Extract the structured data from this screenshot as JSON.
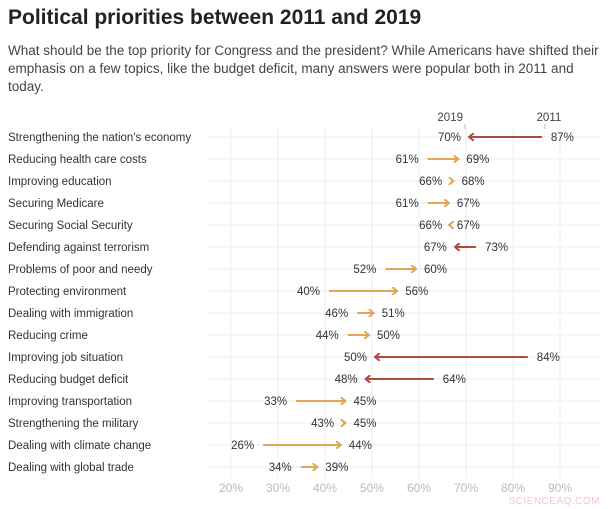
{
  "title": "Political priorities between 2011 and 2019",
  "subtitle": "What should be the top priority for Congress and the president? While Americans have shifted their emphasis on a few topics, like the budget deficit, many answers were popular both in 2011 and today.",
  "watermark": "SCIENCEAQ.COM",
  "chart_data": {
    "type": "arrow",
    "series_labels": {
      "from": "2011",
      "to": "2019"
    },
    "colors": {
      "increase": "#e3a653",
      "decrease": "#b04a3e",
      "grid": "#ececec",
      "tick": "#bbbbbb"
    },
    "xlim": [
      15,
      98
    ],
    "xticks": [
      20,
      30,
      40,
      50,
      60,
      70,
      80,
      90
    ],
    "xtick_labels": [
      "20%",
      "30%",
      "40%",
      "50%",
      "60%",
      "70%",
      "80%",
      "90%"
    ],
    "grid": true,
    "categories": [
      "Strengthening the nation's economy",
      "Reducing health care costs",
      "Improving education",
      "Securing Medicare",
      "Securing Social Security",
      "Defending against terrorism",
      "Problems of poor and needy",
      "Protecting environment",
      "Dealing with immigration",
      "Reducing crime",
      "Improving job situation",
      "Reducing budget deficit",
      "Improving transportation",
      "Strengthening the military",
      "Dealing with climate change",
      "Dealing with global trade"
    ],
    "values_2011": [
      87,
      61,
      66,
      61,
      66,
      73,
      52,
      40,
      46,
      44,
      84,
      64,
      33,
      43,
      26,
      34
    ],
    "values_2019": [
      70,
      69,
      68,
      67,
      67,
      67,
      60,
      56,
      51,
      50,
      50,
      48,
      45,
      45,
      44,
      39
    ]
  }
}
